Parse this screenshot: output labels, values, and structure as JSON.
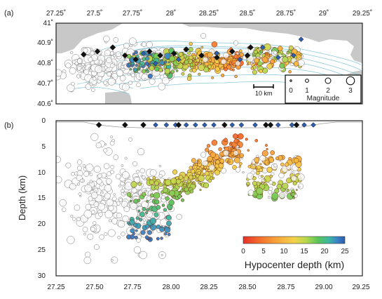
{
  "chart_data": [
    {
      "panel": "(a)",
      "type": "scatter",
      "xlim": [
        27.25,
        29.25
      ],
      "ylim": [
        40.6,
        41.0
      ],
      "x_ticks": [
        "27.25˚",
        "27.5˚",
        "27.75˚",
        "28˚",
        "28.25˚",
        "28.5˚",
        "28.75˚",
        "29˚",
        "29.25˚"
      ],
      "y_ticks": [
        "40.6˚",
        "40.7˚",
        "40.8˚",
        "40.9˚",
        "41˚"
      ],
      "scale_bar": "10 km",
      "magnitude_legend": {
        "labels": [
          "0",
          "1",
          "2",
          "3"
        ],
        "title": "Magnitude"
      },
      "stations": [
        [
          27.43,
          40.845
        ],
        [
          27.52,
          40.86
        ],
        [
          27.62,
          40.88
        ],
        [
          27.7,
          40.84
        ],
        [
          27.77,
          40.82
        ],
        [
          27.86,
          40.86
        ],
        [
          27.93,
          40.84
        ],
        [
          28.02,
          40.85
        ],
        [
          28.1,
          40.87
        ],
        [
          28.2,
          40.84
        ],
        [
          28.3,
          40.83
        ],
        [
          28.4,
          40.86
        ],
        [
          28.5,
          40.84
        ],
        [
          28.52,
          40.88
        ]
      ],
      "broadband": [
        [
          27.82,
          40.85
        ],
        [
          27.9,
          40.8
        ],
        [
          28.05,
          40.82
        ],
        [
          28.3,
          40.85
        ],
        [
          28.6,
          40.88
        ],
        [
          28.8,
          40.84
        ],
        [
          28.85,
          40.92
        ],
        [
          28.7,
          40.83
        ],
        [
          28.45,
          40.82
        ]
      ]
    },
    {
      "panel": "(b)",
      "type": "scatter",
      "xlim": [
        27.25,
        29.25
      ],
      "ylim": [
        30,
        0
      ],
      "ylabel": "Depth (km)",
      "x_ticks": [
        "27.25",
        "27.50",
        "27.75",
        "28.00",
        "28.25",
        "28.50",
        "28.75",
        "29.00",
        "29.25"
      ],
      "y_ticks": [
        "0",
        "5",
        "10",
        "15",
        "20",
        "25",
        "30"
      ],
      "colorbar": {
        "title": "Hypocenter depth (km)",
        "ticks": [
          "0",
          "5",
          "10",
          "15",
          "20",
          "25"
        ],
        "colors": [
          "#e8322a",
          "#f26a2c",
          "#f7a23a",
          "#f3d24a",
          "#b6d850",
          "#57c45a",
          "#3db8a4",
          "#3a7fc8",
          "#2b5ba8"
        ]
      },
      "surface_stations_black": [
        27.53,
        27.7,
        27.82,
        28.05,
        28.35,
        28.62,
        28.65,
        28.82
      ],
      "surface_stations_blue": [
        27.82,
        27.9,
        27.97,
        28.03,
        28.1,
        28.16,
        28.22,
        28.28,
        28.4,
        28.46,
        28.55,
        28.7,
        28.79,
        28.87,
        28.93
      ]
    }
  ]
}
